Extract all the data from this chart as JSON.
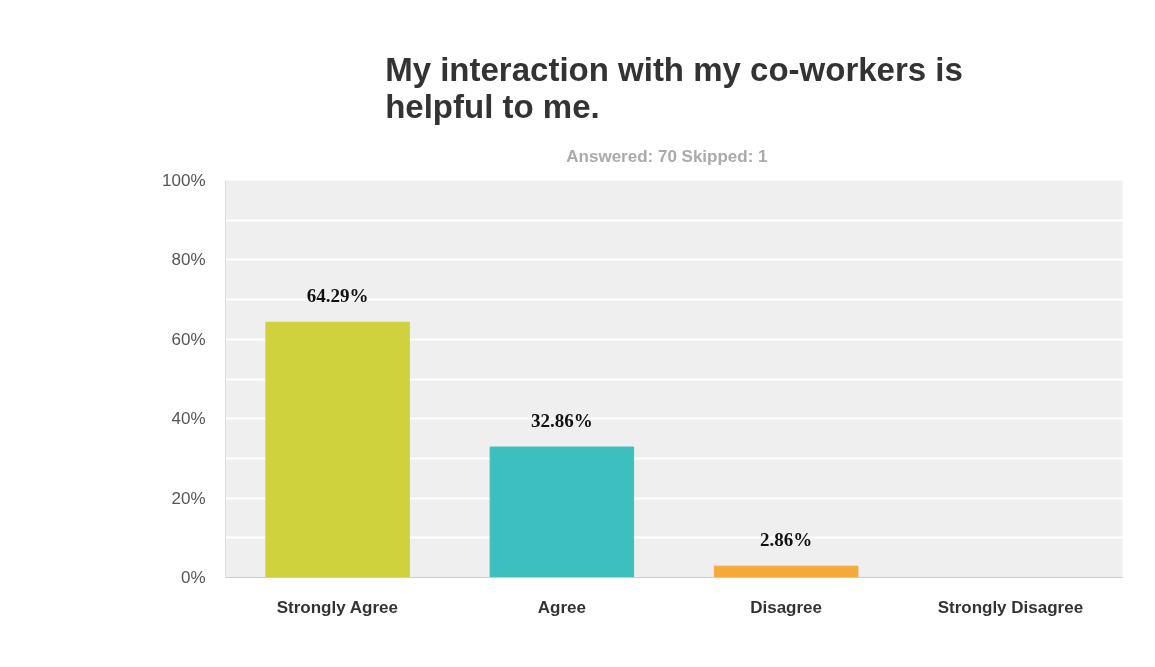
{
  "chart_data": {
    "type": "bar",
    "title": "My interaction with my co-workers is\nhelpful to me.",
    "subtitle": "Answered: 70    Skipped: 1",
    "categories": [
      "Strongly Agree",
      "Agree",
      "Disagree",
      "Strongly Disagree"
    ],
    "values": [
      64.29,
      32.86,
      2.86,
      0
    ],
    "value_labels": [
      "64.29%",
      "32.86%",
      "2.86%",
      null
    ],
    "colors": [
      "#cfd23c",
      "#3dbfc0",
      "#f4a93a",
      "#9b6fb5"
    ],
    "ylim": [
      0,
      100
    ],
    "yticks": [
      {
        "value": 0,
        "label": "0%"
      },
      {
        "value": 10,
        "label": null
      },
      {
        "value": 20,
        "label": "20%"
      },
      {
        "value": 30,
        "label": null
      },
      {
        "value": 40,
        "label": "40%"
      },
      {
        "value": 50,
        "label": null
      },
      {
        "value": 60,
        "label": "60%"
      },
      {
        "value": 70,
        "label": null
      },
      {
        "value": 80,
        "label": "80%"
      },
      {
        "value": 90,
        "label": null
      },
      {
        "value": 100,
        "label": "100%"
      }
    ],
    "grid": "y"
  }
}
